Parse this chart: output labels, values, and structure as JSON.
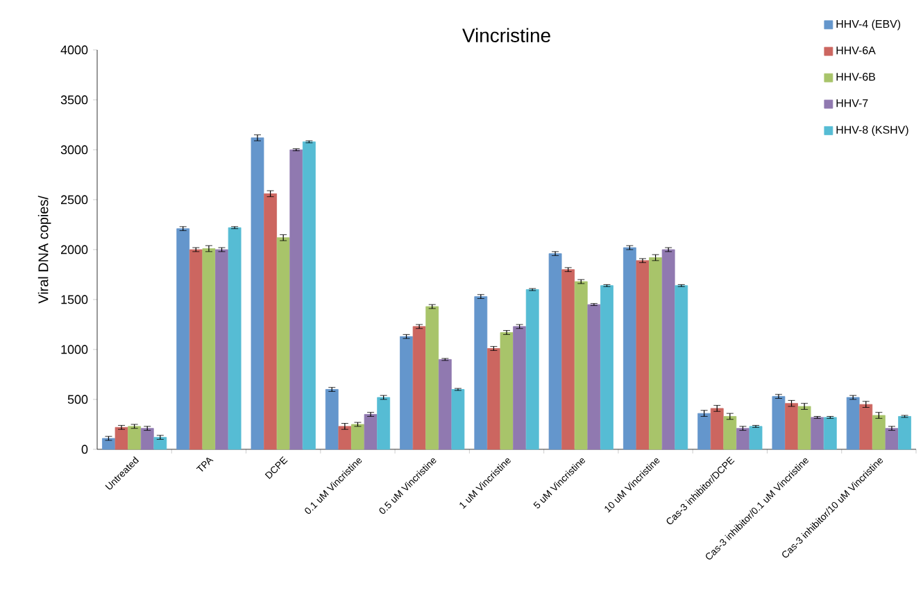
{
  "chart_data": {
    "type": "bar",
    "title": "Vincristine",
    "ylabel": "Viral DNA copies/",
    "categories": [
      "Untreated",
      "TPA",
      "DCPE",
      "0.1 uM Vincristine",
      "0.5 uM Vincristine",
      "1 uM Vincristine",
      "5 uM Vincristine",
      "10 uM Vincristine",
      "Cas-3 inhibitor/DCPE",
      "Cas-3 inhibitor/0.1 uM Vincristine",
      "Cas-3 inhibitor/10 uM Vincristine"
    ],
    "series": [
      {
        "name": "HHV-4 (EBV)",
        "color": "#6496cc",
        "values": [
          110,
          2210,
          3120,
          600,
          1130,
          1530,
          1960,
          2020,
          360,
          530,
          520
        ],
        "errors": [
          20,
          20,
          30,
          20,
          20,
          20,
          20,
          20,
          30,
          20,
          20
        ]
      },
      {
        "name": "HHV-6A",
        "color": "#cc6660",
        "values": [
          220,
          2000,
          2560,
          230,
          1230,
          1010,
          1800,
          1890,
          410,
          460,
          450
        ],
        "errors": [
          20,
          20,
          30,
          30,
          20,
          20,
          20,
          20,
          30,
          30,
          30
        ]
      },
      {
        "name": "HHV-6B",
        "color": "#a8c46a",
        "values": [
          230,
          2010,
          2120,
          250,
          1430,
          1170,
          1680,
          1920,
          330,
          430,
          340
        ],
        "errors": [
          20,
          30,
          30,
          20,
          20,
          20,
          20,
          30,
          30,
          30,
          30
        ]
      },
      {
        "name": "HHV-7",
        "color": "#9079b0",
        "values": [
          210,
          2000,
          3000,
          350,
          900,
          1230,
          1450,
          2000,
          210,
          320,
          210
        ],
        "errors": [
          20,
          20,
          10,
          20,
          10,
          20,
          10,
          20,
          20,
          10,
          20
        ]
      },
      {
        "name": "HHV-8 (KSHV)",
        "color": "#56bcd4",
        "values": [
          120,
          2220,
          3080,
          520,
          600,
          1600,
          1640,
          1640,
          230,
          320,
          330
        ],
        "errors": [
          20,
          10,
          10,
          20,
          10,
          10,
          10,
          10,
          10,
          10,
          10
        ]
      }
    ],
    "ylim": [
      0,
      4000
    ],
    "yticks": [
      0,
      500,
      1000,
      1500,
      2000,
      2500,
      3000,
      3500,
      4000
    ],
    "grid": false,
    "legend": "top right"
  }
}
